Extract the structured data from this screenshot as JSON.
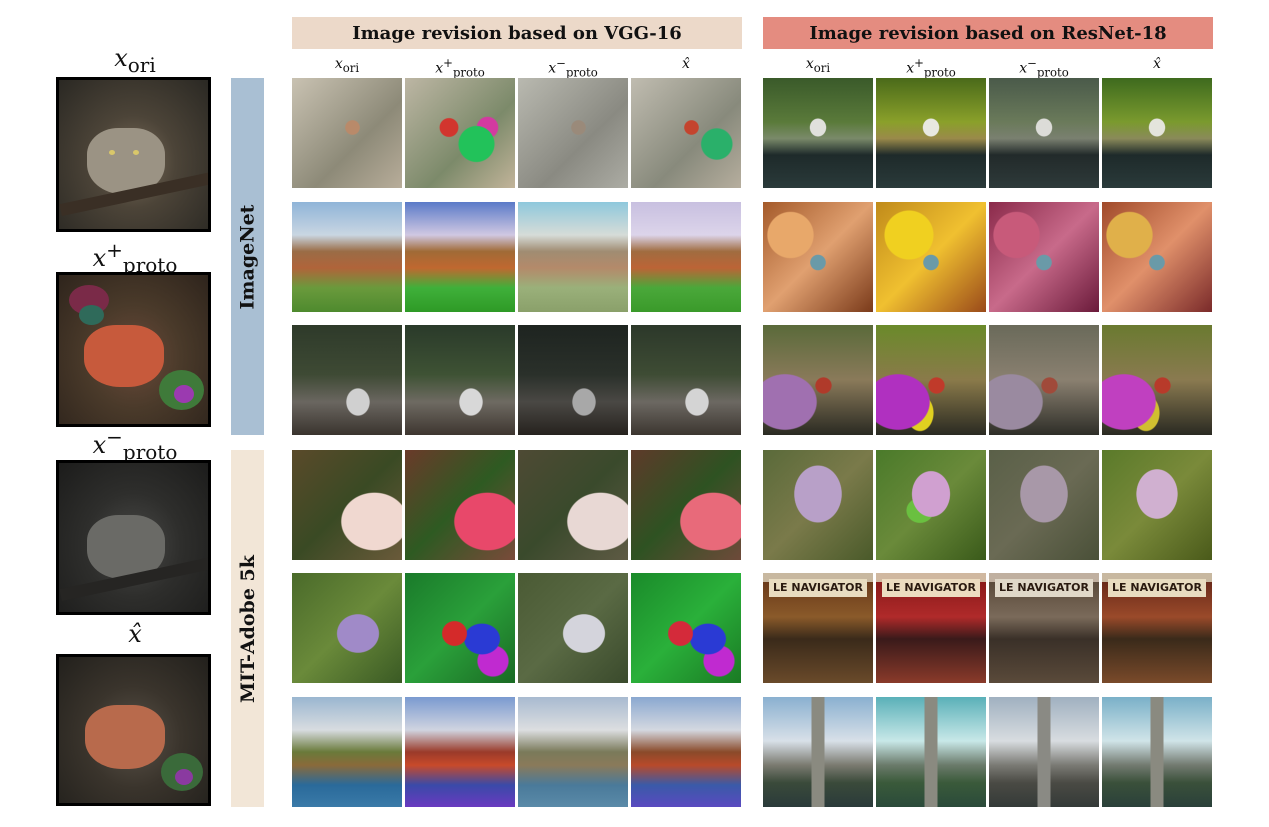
{
  "left_panel": {
    "labels": [
      {
        "var": "x",
        "sub": "ori",
        "sup": ""
      },
      {
        "var": "x",
        "sub": "proto",
        "sup": "+"
      },
      {
        "var": "x",
        "sub": "proto",
        "sup": "−"
      },
      {
        "var": "x̂",
        "sub": "",
        "sup": ""
      }
    ]
  },
  "row_groups": [
    {
      "label": "ImageNet"
    },
    {
      "label": "MIT-Adobe 5k"
    }
  ],
  "panels": [
    {
      "title": "Image revision based on VGG-16",
      "banner_color": "#ecd9c9",
      "columns": [
        {
          "var": "x",
          "sub": "ori",
          "sup": ""
        },
        {
          "var": "x",
          "sub": "proto",
          "sup": "+"
        },
        {
          "var": "x",
          "sub": "proto",
          "sup": "−"
        },
        {
          "var": "x̂",
          "sub": "",
          "sup": ""
        }
      ]
    },
    {
      "title": "Image revision based on ResNet-18",
      "banner_color": "#e48c80",
      "columns": [
        {
          "var": "x",
          "sub": "ori",
          "sup": ""
        },
        {
          "var": "x",
          "sub": "proto",
          "sup": "+"
        },
        {
          "var": "x",
          "sub": "proto",
          "sup": "−"
        },
        {
          "var": "x̂",
          "sub": "",
          "sup": ""
        }
      ]
    }
  ],
  "sign_text": "LE NAVIGATOR",
  "colors": {
    "imagenet_bar": "#a9bfd3",
    "mit_bar": "#f2e6d7"
  }
}
